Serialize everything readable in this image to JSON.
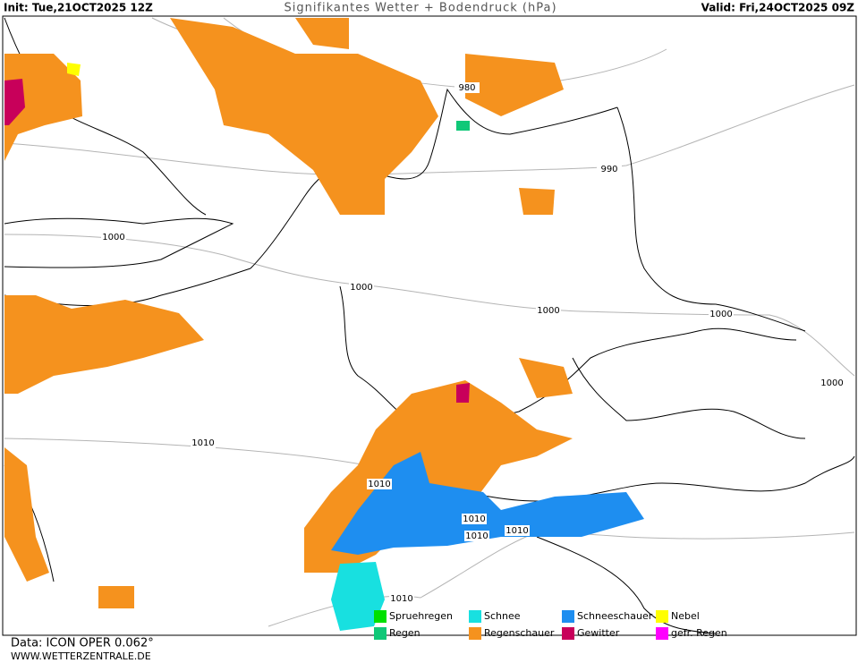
{
  "header": {
    "init": "Init: Tue,21OCT2025 12Z",
    "title": "Signifikantes Wetter +  Bodendruck (hPa)",
    "valid": "Valid: Fri,24OCT2025 09Z"
  },
  "isobar_labels": [
    "980",
    "990",
    "1000",
    "1000",
    "1000",
    "1000",
    "1000",
    "1010",
    "1010",
    "1010",
    "1010",
    "1010",
    "1010"
  ],
  "legend": [
    {
      "label": "Spruehregen",
      "color": "#00e000"
    },
    {
      "label": "Schnee",
      "color": "#18e0e0"
    },
    {
      "label": "Schneeschauer",
      "color": "#1e8ef0"
    },
    {
      "label": "Nebel",
      "color": "#ffff00"
    },
    {
      "label": "Regen",
      "color": "#10c878"
    },
    {
      "label": "Regenschauer",
      "color": "#f5921e"
    },
    {
      "label": "Gewitter",
      "color": "#c8005a"
    },
    {
      "label": "gefr. Regen",
      "color": "#ff00ff"
    }
  ],
  "footer": {
    "data": "Data: ICON OPER 0.062°",
    "website": "WWW.WETTERZENTRALE.DE"
  }
}
